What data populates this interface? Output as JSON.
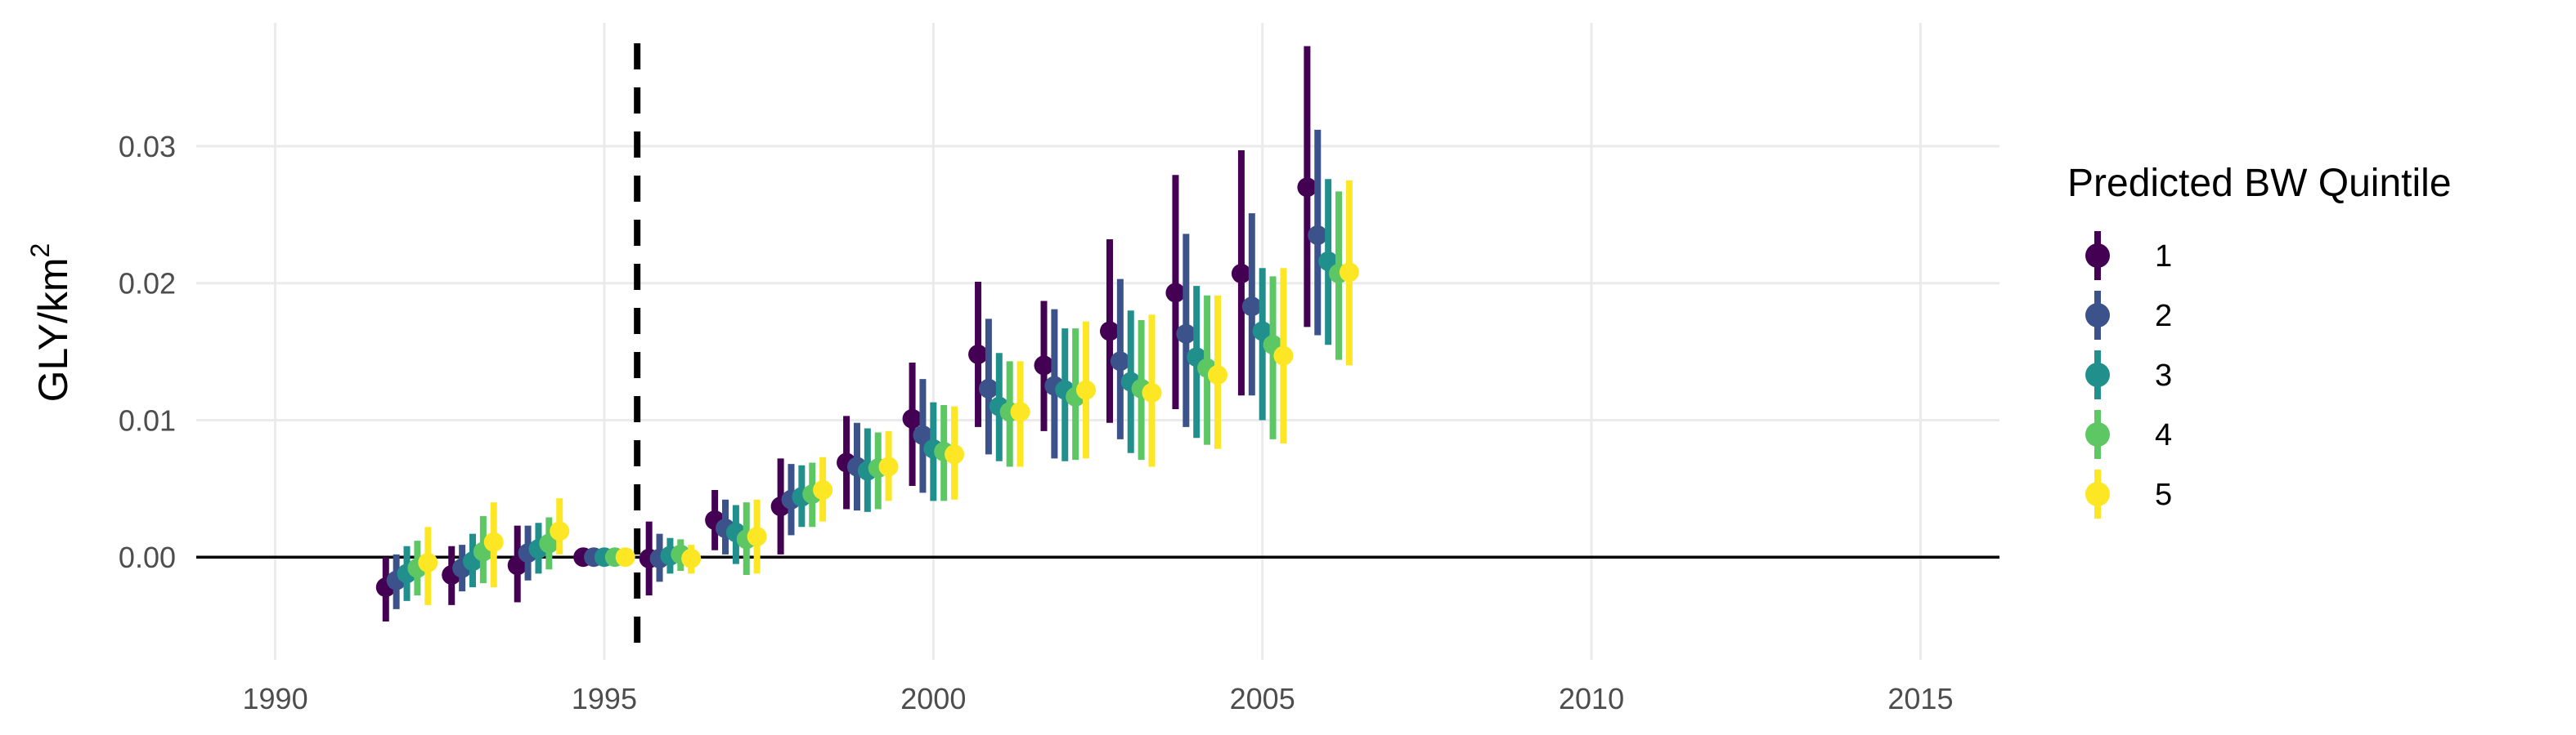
{
  "chart_data": {
    "type": "scatter",
    "subtype": "point-range (estimate with confidence interval)",
    "xlabel": "",
    "ylabel": "GLY/km²",
    "xlim": [
      1988.8,
      2016.2
    ],
    "ylim": [
      -0.0075,
      0.039
    ],
    "x_ticks": [
      1990,
      1995,
      2000,
      2005,
      2010,
      2015
    ],
    "x_tick_labels": [
      "1990",
      "1995",
      "2000",
      "2005",
      "2010",
      "2015"
    ],
    "y_ticks": [
      0,
      0.01,
      0.02,
      0.03
    ],
    "y_tick_labels": [
      "0.00",
      "0.01",
      "0.02",
      "0.03"
    ],
    "grid": true,
    "reference_lines": [
      {
        "axis": "y",
        "value": 0,
        "style": "solid",
        "color": "#000000"
      },
      {
        "axis": "x",
        "value": 1995.5,
        "style": "dashed",
        "color": "#000000"
      }
    ],
    "legend": {
      "title": "Predicted BW Quintile",
      "position": "right"
    },
    "x": [
      1992,
      1993,
      1994,
      1995,
      1996,
      1997,
      1998,
      1999,
      2000,
      2001,
      2002,
      2003,
      2004,
      2005,
      2006
    ],
    "series": [
      {
        "name": "1",
        "color": "#440154",
        "values": [
          -0.0022,
          -0.0013,
          -0.0006,
          0.0,
          -0.0001,
          0.0027,
          0.0037,
          0.0069,
          0.0101,
          0.0148,
          0.014,
          0.0165,
          0.0193,
          0.0207,
          0.027
        ],
        "lower": [
          -0.0047,
          -0.0035,
          -0.0033,
          0.0,
          -0.0028,
          0.0005,
          0.0002,
          0.0035,
          0.0052,
          0.0095,
          0.0092,
          0.0098,
          0.0108,
          0.0118,
          0.0168
        ],
        "upper": [
          0.0,
          0.0008,
          0.0023,
          0.0,
          0.0026,
          0.0049,
          0.0072,
          0.0103,
          0.0142,
          0.0201,
          0.0187,
          0.0232,
          0.0279,
          0.0297,
          0.0373
        ]
      },
      {
        "name": "2",
        "color": "#3b528b",
        "values": [
          -0.0017,
          -0.0008,
          0.0003,
          0.0,
          -0.0001,
          0.0021,
          0.0042,
          0.0066,
          0.0089,
          0.0123,
          0.0125,
          0.0143,
          0.0163,
          0.0183,
          0.0235
        ],
        "lower": [
          -0.0038,
          -0.0025,
          -0.0017,
          0.0,
          -0.0018,
          0.0002,
          0.0016,
          0.0034,
          0.0047,
          0.0075,
          0.0072,
          0.0086,
          0.0095,
          0.0118,
          0.0162
        ],
        "upper": [
          0.0002,
          0.0009,
          0.0023,
          0.0,
          0.0017,
          0.0042,
          0.0068,
          0.0098,
          0.013,
          0.0174,
          0.0181,
          0.0203,
          0.0236,
          0.0251,
          0.0312
        ]
      },
      {
        "name": "3",
        "color": "#21908c",
        "values": [
          -0.0012,
          -0.0003,
          0.0006,
          0.0,
          0.0001,
          0.0018,
          0.0044,
          0.0063,
          0.0079,
          0.011,
          0.0122,
          0.0128,
          0.0146,
          0.0165,
          0.0216
        ],
        "lower": [
          -0.0032,
          -0.0022,
          -0.0012,
          0.0,
          -0.0012,
          -0.0005,
          0.0022,
          0.0033,
          0.0041,
          0.007,
          0.007,
          0.0076,
          0.0087,
          0.01,
          0.0155
        ],
        "upper": [
          0.0008,
          0.0017,
          0.0025,
          0.0,
          0.0014,
          0.0038,
          0.0067,
          0.0094,
          0.0113,
          0.0149,
          0.0167,
          0.018,
          0.0198,
          0.0211,
          0.0276
        ]
      },
      {
        "name": "4",
        "color": "#5dc863",
        "values": [
          -0.0008,
          0.0004,
          0.001,
          0.0,
          0.0002,
          0.0013,
          0.0046,
          0.0065,
          0.0077,
          0.0106,
          0.0117,
          0.0123,
          0.0138,
          0.0155,
          0.0207
        ],
        "lower": [
          -0.0028,
          -0.0019,
          -0.0009,
          0.0,
          -0.001,
          -0.0013,
          0.0022,
          0.0035,
          0.0041,
          0.0066,
          0.0071,
          0.0071,
          0.0082,
          0.0086,
          0.0144
        ],
        "upper": [
          0.0012,
          0.003,
          0.0029,
          0.0,
          0.0013,
          0.004,
          0.0069,
          0.0091,
          0.0111,
          0.0143,
          0.0167,
          0.0173,
          0.0191,
          0.0205,
          0.0267
        ]
      },
      {
        "name": "5",
        "color": "#fde725",
        "values": [
          -0.0004,
          0.0011,
          0.0019,
          0.0,
          -0.0001,
          0.0015,
          0.0049,
          0.0066,
          0.0075,
          0.0106,
          0.0122,
          0.012,
          0.0133,
          0.0147,
          0.0208
        ],
        "lower": [
          -0.0035,
          -0.0022,
          0.0002,
          0.0,
          -0.0012,
          -0.0012,
          0.0026,
          0.0041,
          0.0042,
          0.0066,
          0.0072,
          0.0066,
          0.0079,
          0.0083,
          0.014
        ],
        "upper": [
          0.0022,
          0.004,
          0.0043,
          0.0,
          0.0009,
          0.0042,
          0.0073,
          0.0092,
          0.011,
          0.0143,
          0.0172,
          0.0177,
          0.0191,
          0.0211,
          0.0275
        ]
      }
    ]
  }
}
